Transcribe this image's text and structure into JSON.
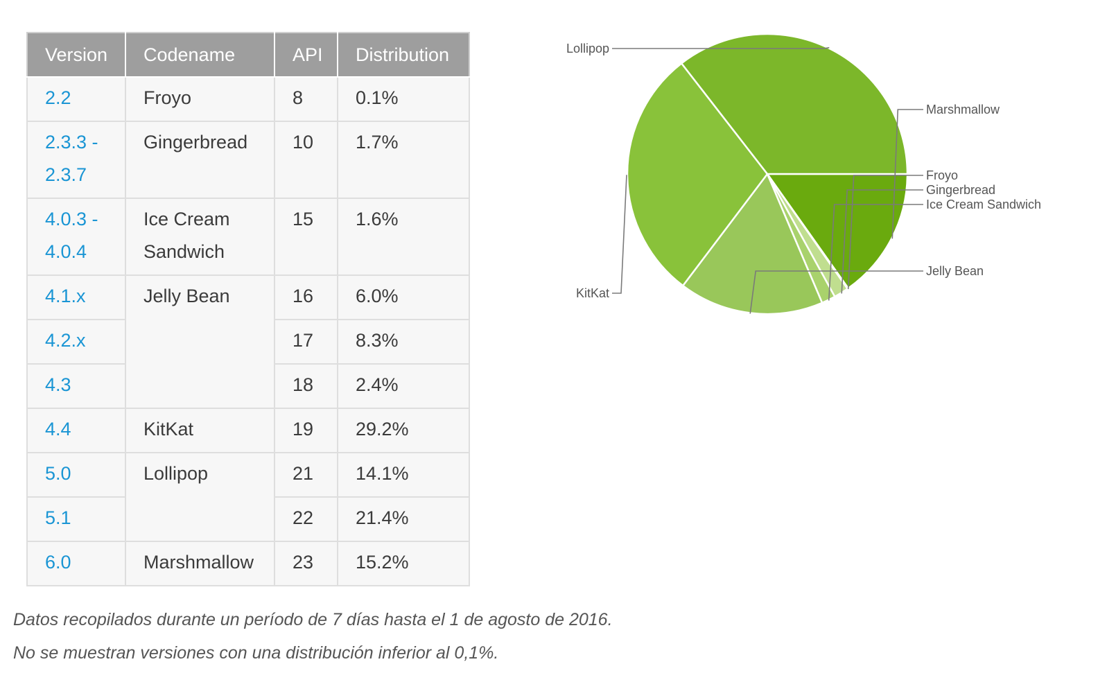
{
  "table": {
    "headers": [
      "Version",
      "Codename",
      "API",
      "Distribution"
    ],
    "rows": [
      {
        "version": "2.2",
        "codename": "Froyo",
        "api": "8",
        "distribution": "0.1%"
      },
      {
        "version": "2.3.3 - 2.3.7",
        "codename": "Gingerbread",
        "api": "10",
        "distribution": "1.7%"
      },
      {
        "version": "4.0.3 - 4.0.4",
        "codename": "Ice Cream Sandwich",
        "api": "15",
        "distribution": "1.6%"
      },
      {
        "version": "4.1.x",
        "codename": "Jelly Bean",
        "api": "16",
        "distribution": "6.0%"
      },
      {
        "version": "4.2.x",
        "codename": "",
        "api": "17",
        "distribution": "8.3%"
      },
      {
        "version": "4.3",
        "codename": "",
        "api": "18",
        "distribution": "2.4%"
      },
      {
        "version": "4.4",
        "codename": "KitKat",
        "api": "19",
        "distribution": "29.2%"
      },
      {
        "version": "5.0",
        "codename": "Lollipop",
        "api": "21",
        "distribution": "14.1%"
      },
      {
        "version": "5.1",
        "codename": "",
        "api": "22",
        "distribution": "21.4%"
      },
      {
        "version": "6.0",
        "codename": "Marshmallow",
        "api": "23",
        "distribution": "15.2%"
      }
    ]
  },
  "chart_data": {
    "type": "pie",
    "categories": [
      "Marshmallow",
      "Froyo",
      "Gingerbread",
      "Ice Cream Sandwich",
      "Jelly Bean",
      "KitKat",
      "Lollipop"
    ],
    "values": [
      15.2,
      0.1,
      1.7,
      1.6,
      16.7,
      29.2,
      35.5
    ],
    "colors": [
      "#6aaa0e",
      "#e9f3d4",
      "#c0de8f",
      "#a9d26c",
      "#99c75a",
      "#89c23a",
      "#7cb72a"
    ],
    "start_angle_deg": 0,
    "direction": "clockwise-from-3-oclock",
    "legend": "leader-lines"
  },
  "captions": [
    "Datos recopilados durante un período de 7 días hasta el 1 de agosto de 2016.",
    "No se muestran versiones con una distribución inferior al 0,1%."
  ]
}
